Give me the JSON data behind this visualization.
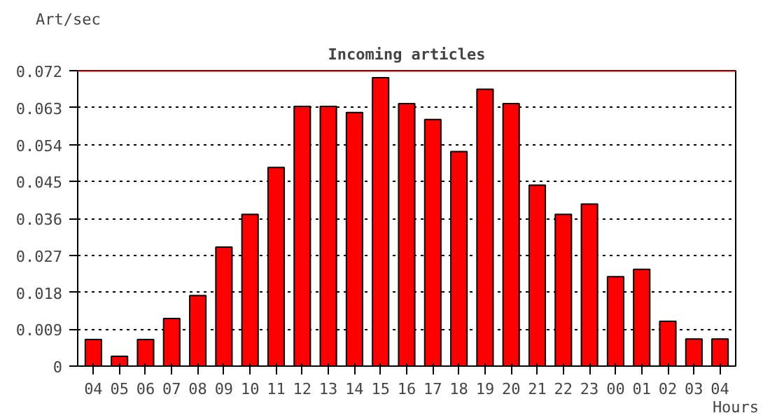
{
  "chart_data": {
    "type": "bar",
    "title": "Incoming articles",
    "ylabel": "Art/sec",
    "xlabel": "Hours",
    "categories": [
      "04",
      "05",
      "06",
      "07",
      "08",
      "09",
      "10",
      "11",
      "12",
      "13",
      "14",
      "15",
      "16",
      "17",
      "18",
      "19",
      "20",
      "21",
      "22",
      "23",
      "00",
      "01",
      "02",
      "03",
      "04"
    ],
    "values": [
      0.0065,
      0.0024,
      0.0065,
      0.0116,
      0.0172,
      0.029,
      0.037,
      0.0484,
      0.0633,
      0.0633,
      0.0618,
      0.0703,
      0.064,
      0.0601,
      0.0523,
      0.0675,
      0.064,
      0.0441,
      0.037,
      0.0395,
      0.0218,
      0.0236,
      0.0109,
      0.0066,
      0.0066
    ],
    "color": "#ff0000",
    "ylim": [
      0,
      0.072
    ],
    "yticks": [
      0,
      0.009,
      0.018,
      0.027,
      0.036,
      0.045,
      0.054,
      0.063,
      0.072
    ],
    "grid": "y",
    "line_style": "dotted",
    "ref_lines": [
      {
        "axis": "y",
        "value": 0.072,
        "color": "#ff0000"
      }
    ]
  }
}
